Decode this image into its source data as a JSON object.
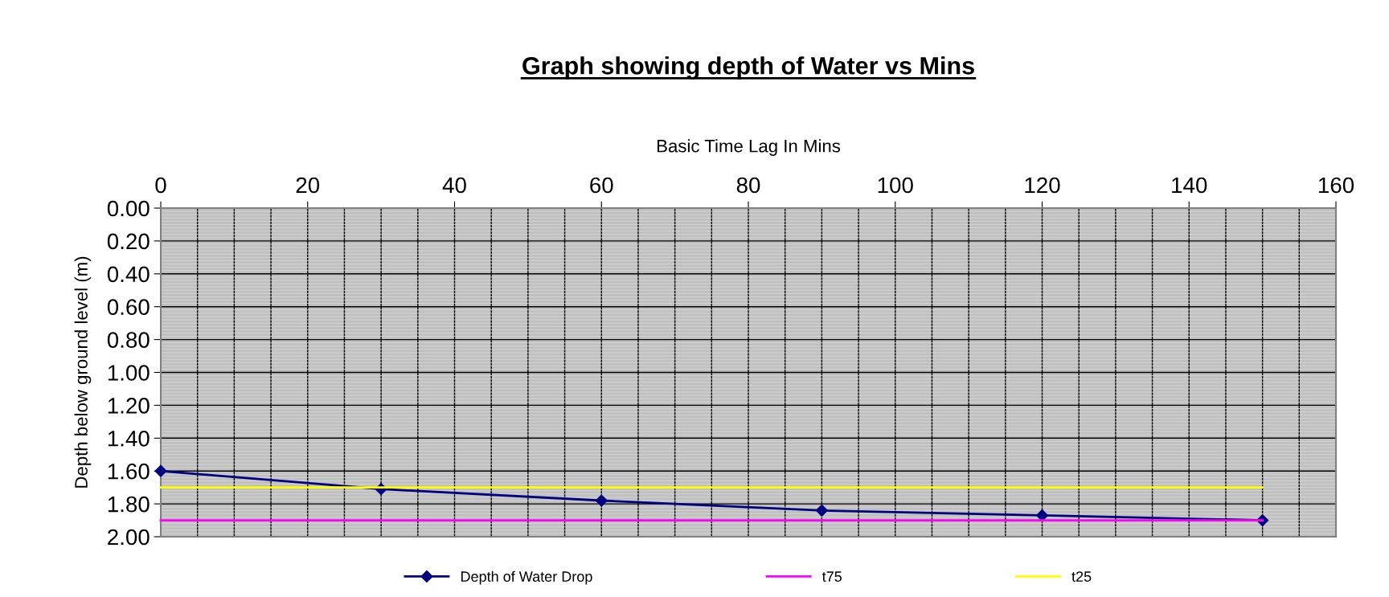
{
  "chart_data": {
    "type": "line",
    "title": "Graph showing depth of Water vs Mins",
    "xlabel": "Basic Time Lag In Mins",
    "ylabel": "Depth below ground level (m)",
    "x": [
      0,
      30,
      60,
      90,
      120,
      150
    ],
    "series": [
      {
        "name": "Depth of Water Drop",
        "color": "#000080",
        "values": [
          1.6,
          1.71,
          1.78,
          1.84,
          1.87,
          1.9
        ],
        "marker": "diamond"
      },
      {
        "name": "t75",
        "color": "#ff00ff",
        "values": [
          1.9,
          1.9,
          1.9,
          1.9,
          1.9,
          1.9
        ],
        "marker": "none"
      },
      {
        "name": "t25",
        "color": "#ffff00",
        "values": [
          1.7,
          1.7,
          1.7,
          1.7,
          1.7,
          1.7
        ],
        "marker": "none"
      }
    ],
    "xlim": [
      0,
      160
    ],
    "xticks": [
      0,
      20,
      40,
      60,
      80,
      100,
      120,
      140,
      160
    ],
    "ylim": [
      2.0,
      0.0
    ],
    "yticks": [
      {
        "value": 0,
        "label": "0.00"
      },
      {
        "value": 0.2,
        "label": "0.20"
      },
      {
        "value": 0.4,
        "label": "0.40"
      },
      {
        "value": 0.6,
        "label": "0.60"
      },
      {
        "value": 0.8,
        "label": "0.80"
      },
      {
        "value": 1.0,
        "label": "1.00"
      },
      {
        "value": 1.2,
        "label": "1.20"
      },
      {
        "value": 1.4,
        "label": "1.40"
      },
      {
        "value": 1.6,
        "label": "1.60"
      },
      {
        "value": 1.8,
        "label": "1.80"
      },
      {
        "value": 2.0,
        "label": "2.00"
      }
    ],
    "grid": true,
    "legend": "bottom",
    "line_style": "solid"
  }
}
